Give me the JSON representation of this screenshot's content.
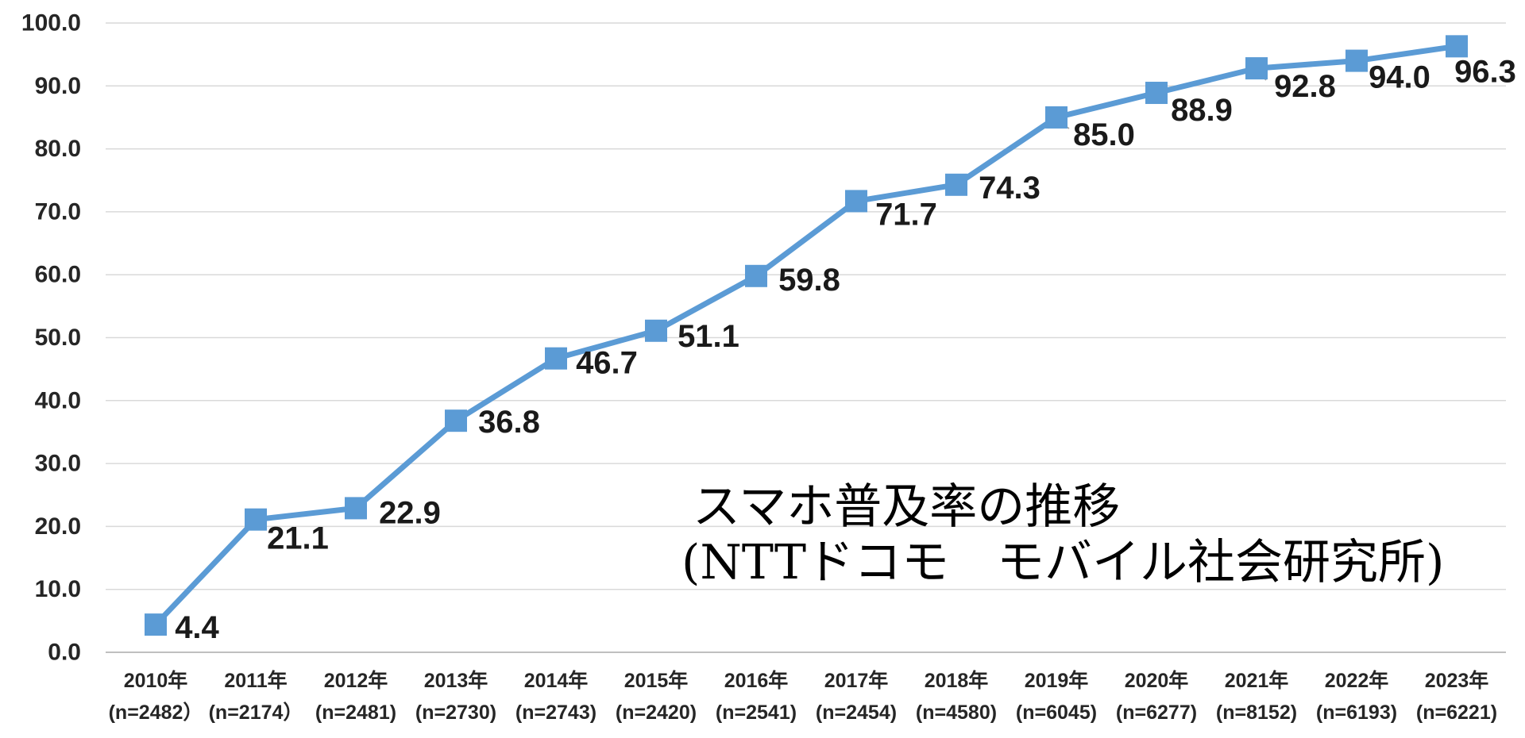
{
  "title": {
    "line1": "スマホ普及率の推移",
    "line2": "(NTTドコモ　モバイル社会研究所)"
  },
  "chart_data": {
    "type": "line",
    "title": "スマホ普及率の推移（NTTドコモ モバイル社会研究所）",
    "categories": [
      "2010年",
      "2011年",
      "2012年",
      "2013年",
      "2014年",
      "2015年",
      "2016年",
      "2017年",
      "2018年",
      "2019年",
      "2020年",
      "2021年",
      "2022年",
      "2023年"
    ],
    "sample_sizes": [
      "(n=2482）",
      "(n=2174）",
      "(n=2481)",
      "(n=2730)",
      "(n=2743)",
      "(n=2420)",
      "(n=2541)",
      "(n=2454)",
      "(n=4580)",
      "(n=6045)",
      "(n=6277)",
      "(n=8152)",
      "(n=6193)",
      "(n=6221)"
    ],
    "values": [
      4.4,
      21.1,
      22.9,
      36.8,
      46.7,
      51.1,
      59.8,
      71.7,
      74.3,
      85.0,
      88.9,
      92.8,
      94.0,
      96.3
    ],
    "y_ticks": [
      "100.0",
      "90.0",
      "80.0",
      "70.0",
      "60.0",
      "50.0",
      "40.0",
      "30.0",
      "20.0",
      "10.0",
      "0.0"
    ],
    "ylim": [
      0,
      100
    ],
    "grid": true,
    "legend": "none",
    "marker": "square",
    "series_name": "スマホ普及率",
    "xlabel": "",
    "ylabel": ""
  },
  "colors": {
    "series": "#5B9BD5",
    "gridline": "#D9D9D9",
    "axis_line": "#BFBFBF",
    "tick_text": "#262626",
    "data_label_text": "#1a1a1a",
    "leader_line": "#A6A6A6",
    "background": "#ffffff",
    "title_text": "#000000"
  }
}
